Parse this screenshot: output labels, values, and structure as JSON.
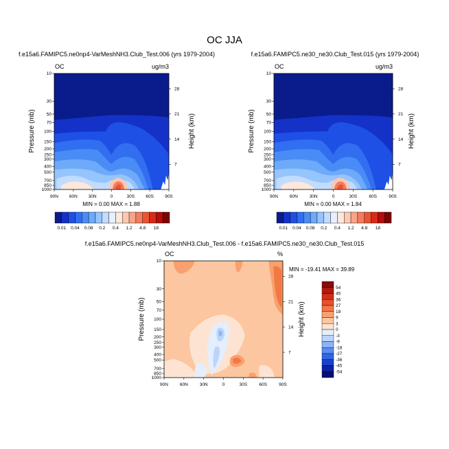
{
  "figure": {
    "title": "OC JJA"
  },
  "panels": [
    {
      "id": "p1",
      "title": "f.e15a6.FAMIPC5.ne0np4-VarMeshNH3.Club_Test.006 (yrs 1979-2004)",
      "left_label": "OC",
      "right_label": "ug/m3",
      "stats": "MIN =   0.00   MAX =   1.88"
    },
    {
      "id": "p2",
      "title": "f.e15a6.FAMIPC5.ne30_ne30.Club_Test.015 (yrs 1979-2004)",
      "left_label": "OC",
      "right_label": "ug/m3",
      "stats": "MIN =   0.00   MAX =   1.84"
    },
    {
      "id": "p3",
      "title": "f.e15a6.FAMIPC5.ne0np4-VarMeshNH3.Club_Test.006 - f.e15a6.FAMIPC5.ne30_ne30.Club_Test.015",
      "left_label": "OC",
      "right_label": "%",
      "stats": "MIN = -19.41   MAX =  39.89"
    }
  ],
  "axes": {
    "ylabel": "Pressure (mb)",
    "y2label": "Height (km)",
    "pressure_ticks": [
      "10",
      "30",
      "50",
      "70",
      "100",
      "150",
      "200",
      "250",
      "300",
      "400",
      "500",
      "700",
      "850",
      "1000"
    ],
    "height_ticks": [
      "28",
      "21",
      "14",
      "7"
    ],
    "lat_ticks": [
      "90N",
      "60N",
      "30N",
      "0",
      "30S",
      "60S",
      "90S"
    ]
  },
  "colorbars": {
    "conc": {
      "labels": [
        "0.01",
        "0.04",
        "0.08",
        "0.2",
        "0.4",
        "1.2",
        "4.8",
        "18"
      ],
      "colors": [
        "#0a1c8c",
        "#1432c8",
        "#1e50e6",
        "#326ef0",
        "#4a8cf6",
        "#6eaafa",
        "#96c4fc",
        "#c2dcfe",
        "#e8f0fe",
        "#fde8dc",
        "#fbc8b0",
        "#f8a488",
        "#f47c5e",
        "#ea5434",
        "#d82a16",
        "#b40e0a",
        "#7c0404"
      ]
    },
    "diff": {
      "labels": [
        "54",
        "45",
        "36",
        "27",
        "18",
        "9",
        "3",
        "0",
        "-3",
        "-9",
        "-18",
        "-27",
        "-36",
        "-45",
        "-54"
      ],
      "colors": [
        "#8a0c08",
        "#b01a10",
        "#d22e18",
        "#e8502c",
        "#f27844",
        "#f8a06e",
        "#fbc6a0",
        "#fde4d2",
        "#e4eefc",
        "#bcd4fa",
        "#8ab4f6",
        "#5a8ef0",
        "#3066e6",
        "#1a40cc",
        "#0c24a2",
        "#060f78"
      ]
    }
  },
  "chart_data": [
    {
      "type": "heatmap",
      "title": "f.e15a6.FAMIPC5.ne0np4-VarMeshNH3.Club_Test.006 (yrs 1979-2004)",
      "variable": "OC",
      "units": "ug/m3",
      "x": [
        "90N",
        "60N",
        "30N",
        "0",
        "30S",
        "60S",
        "90S"
      ],
      "y_pressure_mb": [
        10,
        30,
        50,
        70,
        100,
        150,
        200,
        250,
        300,
        400,
        500,
        700,
        850,
        1000
      ],
      "min": 0.0,
      "max": 1.88,
      "contour_levels": [
        0.01,
        0.04,
        0.08,
        0.2,
        0.4,
        1.2,
        4.8,
        18
      ],
      "approx_field_by_level": {
        "10": [
          0.005,
          0.005,
          0.005,
          0.005,
          0.005,
          0.005,
          0.005
        ],
        "50": [
          0.005,
          0.006,
          0.006,
          0.006,
          0.006,
          0.006,
          0.005
        ],
        "100": [
          0.01,
          0.012,
          0.015,
          0.03,
          0.012,
          0.01,
          0.006
        ],
        "200": [
          0.02,
          0.03,
          0.04,
          0.06,
          0.04,
          0.012,
          0.006
        ],
        "400": [
          0.05,
          0.08,
          0.12,
          0.2,
          0.18,
          0.04,
          0.006
        ],
        "700": [
          0.12,
          0.2,
          0.25,
          0.5,
          0.3,
          0.04,
          0.005
        ],
        "850": [
          0.2,
          0.35,
          0.3,
          1.2,
          0.4,
          0.04,
          0.005
        ],
        "1000": [
          0.2,
          0.4,
          0.3,
          1.8,
          0.3,
          0.03,
          0.004
        ]
      }
    },
    {
      "type": "heatmap",
      "title": "f.e15a6.FAMIPC5.ne30_ne30.Club_Test.015 (yrs 1979-2004)",
      "variable": "OC",
      "units": "ug/m3",
      "x": [
        "90N",
        "60N",
        "30N",
        "0",
        "30S",
        "60S",
        "90S"
      ],
      "y_pressure_mb": [
        10,
        30,
        50,
        70,
        100,
        150,
        200,
        250,
        300,
        400,
        500,
        700,
        850,
        1000
      ],
      "min": 0.0,
      "max": 1.84,
      "contour_levels": [
        0.01,
        0.04,
        0.08,
        0.2,
        0.4,
        1.2,
        4.8,
        18
      ],
      "approx_field_by_level": {
        "10": [
          0.005,
          0.005,
          0.005,
          0.005,
          0.005,
          0.005,
          0.005
        ],
        "50": [
          0.005,
          0.006,
          0.006,
          0.006,
          0.006,
          0.006,
          0.005
        ],
        "100": [
          0.01,
          0.012,
          0.015,
          0.03,
          0.012,
          0.01,
          0.006
        ],
        "200": [
          0.02,
          0.03,
          0.04,
          0.06,
          0.04,
          0.012,
          0.006
        ],
        "400": [
          0.05,
          0.08,
          0.12,
          0.2,
          0.18,
          0.04,
          0.006
        ],
        "700": [
          0.12,
          0.2,
          0.25,
          0.5,
          0.3,
          0.04,
          0.005
        ],
        "850": [
          0.2,
          0.35,
          0.3,
          1.2,
          0.4,
          0.04,
          0.005
        ],
        "1000": [
          0.2,
          0.4,
          0.3,
          1.8,
          0.3,
          0.03,
          0.004
        ]
      }
    },
    {
      "type": "heatmap",
      "title": "f.e15a6.FAMIPC5.ne0np4-VarMeshNH3.Club_Test.006 - f.e15a6.FAMIPC5.ne30_ne30.Club_Test.015",
      "variable": "OC",
      "units": "%",
      "x": [
        "90N",
        "60N",
        "30N",
        "0",
        "30S",
        "60S",
        "90S"
      ],
      "y_pressure_mb": [
        10,
        30,
        50,
        70,
        100,
        150,
        200,
        250,
        300,
        400,
        500,
        700,
        850,
        1000
      ],
      "min": -19.41,
      "max": 39.89,
      "contour_levels": [
        -54,
        -45,
        -36,
        -27,
        -18,
        -9,
        -3,
        0,
        3,
        9,
        18,
        27,
        36,
        45,
        54
      ],
      "approx_field_by_level": {
        "10": [
          27,
          20,
          12,
          12,
          15,
          25,
          27
        ],
        "50": [
          12,
          10,
          10,
          10,
          10,
          12,
          25
        ],
        "100": [
          10,
          10,
          10,
          8,
          10,
          12,
          18
        ],
        "200": [
          9,
          6,
          3,
          -3,
          3,
          9,
          10
        ],
        "400": [
          9,
          6,
          0,
          -9,
          10,
          9,
          12
        ],
        "700": [
          9,
          6,
          3,
          -3,
          18,
          9,
          9
        ],
        "1000": [
          3,
          3,
          0,
          3,
          9,
          9,
          9
        ]
      }
    }
  ]
}
